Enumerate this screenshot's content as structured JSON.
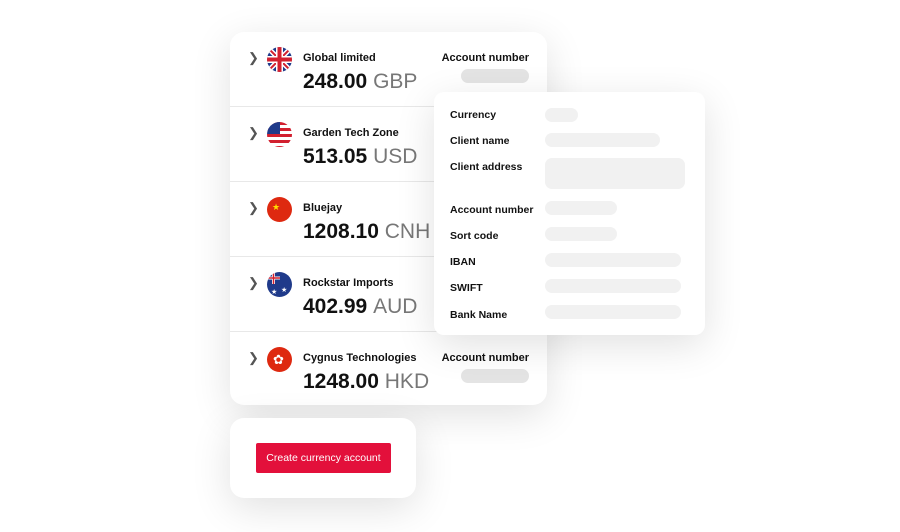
{
  "accounts": [
    {
      "name": "Global limited",
      "amount": "248.00",
      "currency": "GBP",
      "flag": "uk-flag",
      "account_label": "Account number"
    },
    {
      "name": "Garden Tech Zone",
      "amount": "513.05",
      "currency": "USD",
      "flag": "us-flag"
    },
    {
      "name": "Bluejay",
      "amount": "1208.10",
      "currency": "CNH",
      "flag": "china-flag"
    },
    {
      "name": "Rockstar Imports",
      "amount": "402.99",
      "currency": "AUD",
      "flag": "australia-flag"
    },
    {
      "name": "Cygnus Technologies",
      "amount": "1248.00",
      "currency": "HKD",
      "flag": "hong-kong-flag",
      "account_label": "Account number"
    }
  ],
  "details": {
    "labels": [
      "Currency",
      "Client name",
      "Client address",
      "Account number",
      "Sort code",
      "IBAN",
      "SWIFT",
      "Bank Name"
    ]
  },
  "create_button": "Create currency account",
  "colors": {
    "accent": "#e3103b"
  }
}
